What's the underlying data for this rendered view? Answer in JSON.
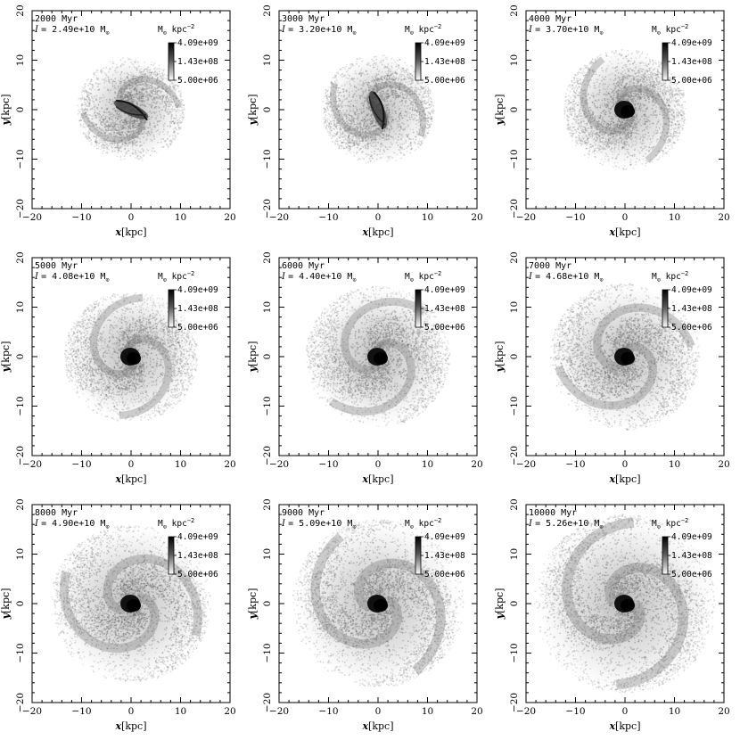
{
  "figure": {
    "xlabel_sym": "x",
    "ylabel_sym": "y",
    "unit": "[kpc]",
    "axis_ticks": [
      "−20",
      "−10",
      "0",
      "10",
      "20"
    ],
    "colorbar": {
      "unit_label": "M",
      "unit_sub": "⊙",
      "unit_tail": " kpc",
      "unit_exp": "−2",
      "max_label": "4.09e+09",
      "mid_label": "1.43e+08",
      "min_label": "5.00e+06"
    },
    "mass_symbol": "I",
    "mass_unit_sub": "⊙"
  },
  "chart_data": [
    {
      "type": "heatmap",
      "time_label": "2000 Myr",
      "mass_label": "= 2.49e+10 M",
      "xlim": [
        -20,
        20
      ],
      "ylim": [
        -20,
        20
      ],
      "xlabel": "x[kpc]",
      "ylabel": "y[kpc]",
      "colorbar_range": [
        "5.00e+06",
        "4.09e+09"
      ],
      "disc_radius_kpc": 10,
      "structure": "bar with spiral arms"
    },
    {
      "type": "heatmap",
      "time_label": "3000 Myr",
      "mass_label": "= 3.20e+10 M",
      "xlim": [
        -20,
        20
      ],
      "ylim": [
        -20,
        20
      ],
      "xlabel": "x[kpc]",
      "ylabel": "y[kpc]",
      "colorbar_range": [
        "5.00e+06",
        "4.09e+09"
      ],
      "disc_radius_kpc": 10.5,
      "structure": "bar with spiral arms"
    },
    {
      "type": "heatmap",
      "time_label": "4000 Myr",
      "mass_label": "= 3.70e+10 M",
      "xlim": [
        -20,
        20
      ],
      "ylim": [
        -20,
        20
      ],
      "xlabel": "x[kpc]",
      "ylabel": "y[kpc]",
      "colorbar_range": [
        "5.00e+06",
        "4.09e+09"
      ],
      "disc_radius_kpc": 11.5,
      "structure": "spiral"
    },
    {
      "type": "heatmap",
      "time_label": "5000 Myr",
      "mass_label": "= 4.08e+10 M",
      "xlim": [
        -20,
        20
      ],
      "ylim": [
        -20,
        20
      ],
      "xlabel": "x[kpc]",
      "ylabel": "y[kpc]",
      "colorbar_range": [
        "5.00e+06",
        "4.09e+09"
      ],
      "disc_radius_kpc": 12.5,
      "structure": "spiral"
    },
    {
      "type": "heatmap",
      "time_label": "6000 Myr",
      "mass_label": "= 4.40e+10 M",
      "xlim": [
        -20,
        20
      ],
      "ylim": [
        -20,
        20
      ],
      "xlabel": "x[kpc]",
      "ylabel": "y[kpc]",
      "colorbar_range": [
        "5.00e+06",
        "4.09e+09"
      ],
      "disc_radius_kpc": 13.5,
      "structure": "spiral"
    },
    {
      "type": "heatmap",
      "time_label": "7000 Myr",
      "mass_label": "= 4.68e+10 M",
      "xlim": [
        -20,
        20
      ],
      "ylim": [
        -20,
        20
      ],
      "xlabel": "x[kpc]",
      "ylabel": "y[kpc]",
      "colorbar_range": [
        "5.00e+06",
        "4.09e+09"
      ],
      "disc_radius_kpc": 14,
      "structure": "spiral"
    },
    {
      "type": "heatmap",
      "time_label": "8000 Myr",
      "mass_label": "= 4.90e+10 M",
      "xlim": [
        -20,
        20
      ],
      "ylim": [
        -20,
        20
      ],
      "xlabel": "x[kpc]",
      "ylabel": "y[kpc]",
      "colorbar_range": [
        "5.00e+06",
        "4.09e+09"
      ],
      "disc_radius_kpc": 15,
      "structure": "spiral"
    },
    {
      "type": "heatmap",
      "time_label": "9000 Myr",
      "mass_label": "= 5.09e+10 M",
      "xlim": [
        -20,
        20
      ],
      "ylim": [
        -20,
        20
      ],
      "xlabel": "x[kpc]",
      "ylabel": "y[kpc]",
      "colorbar_range": [
        "5.00e+06",
        "4.09e+09"
      ],
      "disc_radius_kpc": 16,
      "structure": "spiral"
    },
    {
      "type": "heatmap",
      "time_label": "10000 Myr",
      "mass_label": "= 5.26e+10 M",
      "xlim": [
        -20,
        20
      ],
      "ylim": [
        -20,
        20
      ],
      "xlabel": "x[kpc]",
      "ylabel": "y[kpc]",
      "colorbar_range": [
        "5.00e+06",
        "4.09e+09"
      ],
      "disc_radius_kpc": 17,
      "structure": "spiral"
    }
  ]
}
